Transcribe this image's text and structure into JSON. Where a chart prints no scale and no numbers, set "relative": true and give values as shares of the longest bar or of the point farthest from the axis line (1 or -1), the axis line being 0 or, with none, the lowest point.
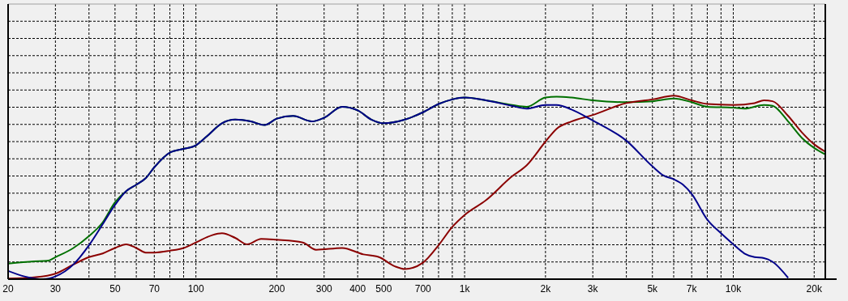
{
  "chart_data": {
    "type": "line",
    "relative": true,
    "log": "x",
    "grid": true,
    "line_style": "solid",
    "marker": "none",
    "xlim": [
      20,
      22000
    ],
    "xticks": [
      20,
      30,
      {
        "value": 40,
        "label": null
      },
      50,
      {
        "value": 60,
        "label": null
      },
      70,
      {
        "value": 80,
        "label": null
      },
      {
        "value": 90,
        "label": null
      },
      100,
      200,
      300,
      400,
      500,
      {
        "value": 600,
        "label": null
      },
      700,
      {
        "value": 800,
        "label": null
      },
      {
        "value": 900,
        "label": null
      },
      {
        "value": 1000,
        "label": "1k"
      },
      {
        "value": 2000,
        "label": "2k"
      },
      {
        "value": 3000,
        "label": "3k"
      },
      {
        "value": 4000,
        "label": null
      },
      {
        "value": 5000,
        "label": "5k"
      },
      {
        "value": 6000,
        "label": null
      },
      {
        "value": 7000,
        "label": "7k"
      },
      {
        "value": 8000,
        "label": null
      },
      {
        "value": 9000,
        "label": null
      },
      {
        "value": 10000,
        "label": "10k"
      },
      {
        "value": 20000,
        "label": "20k"
      }
    ],
    "series": [
      {
        "color": "#007000",
        "x": [
          20,
          25,
          28,
          30,
          35,
          40,
          45,
          50,
          55,
          60,
          65,
          70,
          80,
          90,
          100,
          110,
          125,
          140,
          160,
          180,
          200,
          230,
          270,
          300,
          350,
          400,
          450,
          500,
          600,
          700,
          800,
          900,
          1000,
          1200,
          1500,
          1700,
          2000,
          2200,
          2500,
          3000,
          4000,
          5000,
          6000,
          7000,
          8000,
          10000,
          11000,
          13000,
          14000,
          16000,
          18000,
          20000,
          22000
        ],
        "values": [
          0.085,
          0.097,
          0.1,
          0.12,
          0.17,
          0.235,
          0.31,
          0.42,
          0.48,
          0.515,
          0.55,
          0.61,
          0.69,
          0.71,
          0.73,
          0.78,
          0.85,
          0.87,
          0.86,
          0.84,
          0.875,
          0.89,
          0.86,
          0.88,
          0.94,
          0.92,
          0.87,
          0.85,
          0.87,
          0.91,
          0.955,
          0.98,
          0.99,
          0.975,
          0.95,
          0.94,
          0.99,
          0.995,
          0.99,
          0.975,
          0.965,
          0.97,
          0.985,
          0.965,
          0.94,
          0.935,
          0.93,
          0.95,
          0.945,
          0.86,
          0.77,
          0.715,
          0.68
        ]
      },
      {
        "color": "#8b0000",
        "x": [
          20,
          25,
          30,
          35,
          40,
          45,
          50,
          55,
          60,
          65,
          70,
          80,
          90,
          100,
          115,
          125,
          140,
          155,
          175,
          200,
          250,
          280,
          350,
          420,
          480,
          550,
          600,
          700,
          800,
          900,
          1000,
          1200,
          1500,
          1700,
          2000,
          2200,
          2500,
          3000,
          4000,
          5000,
          6000,
          7000,
          8000,
          10000,
          12000,
          13000,
          14000,
          16000,
          18000,
          20000,
          22000
        ],
        "values": [
          0.003,
          0.01,
          0.03,
          0.08,
          0.12,
          0.14,
          0.17,
          0.19,
          0.17,
          0.145,
          0.145,
          0.155,
          0.17,
          0.2,
          0.24,
          0.25,
          0.225,
          0.19,
          0.22,
          0.215,
          0.2,
          0.16,
          0.17,
          0.135,
          0.12,
          0.07,
          0.055,
          0.09,
          0.185,
          0.285,
          0.35,
          0.43,
          0.56,
          0.62,
          0.75,
          0.82,
          0.86,
          0.895,
          0.96,
          0.98,
          1,
          0.975,
          0.955,
          0.95,
          0.96,
          0.975,
          0.97,
          0.89,
          0.8,
          0.735,
          0.695
        ]
      },
      {
        "color": "#00008b",
        "x": [
          20,
          23,
          27,
          30,
          35,
          40,
          45,
          50,
          55,
          60,
          65,
          70,
          80,
          90,
          100,
          110,
          125,
          140,
          160,
          180,
          200,
          230,
          270,
          300,
          350,
          400,
          450,
          500,
          600,
          700,
          800,
          900,
          1000,
          1200,
          1500,
          1700,
          2000,
          2200,
          2500,
          3000,
          4000,
          5000,
          5500,
          6000,
          6500,
          7000,
          8000,
          9000,
          10000,
          11000,
          12000,
          13000,
          14000,
          16000
        ],
        "values": [
          0.045,
          0.015,
          0,
          0.015,
          0.08,
          0.185,
          0.3,
          0.405,
          0.48,
          0.515,
          0.55,
          0.61,
          0.69,
          0.71,
          0.73,
          0.78,
          0.85,
          0.87,
          0.86,
          0.84,
          0.875,
          0.89,
          0.86,
          0.88,
          0.94,
          0.92,
          0.87,
          0.85,
          0.87,
          0.91,
          0.955,
          0.98,
          0.99,
          0.975,
          0.945,
          0.93,
          0.95,
          0.95,
          0.925,
          0.865,
          0.755,
          0.615,
          0.565,
          0.545,
          0.515,
          0.465,
          0.325,
          0.25,
          0.19,
          0.14,
          0.12,
          0.115,
          0.095,
          0.007
        ]
      }
    ]
  }
}
